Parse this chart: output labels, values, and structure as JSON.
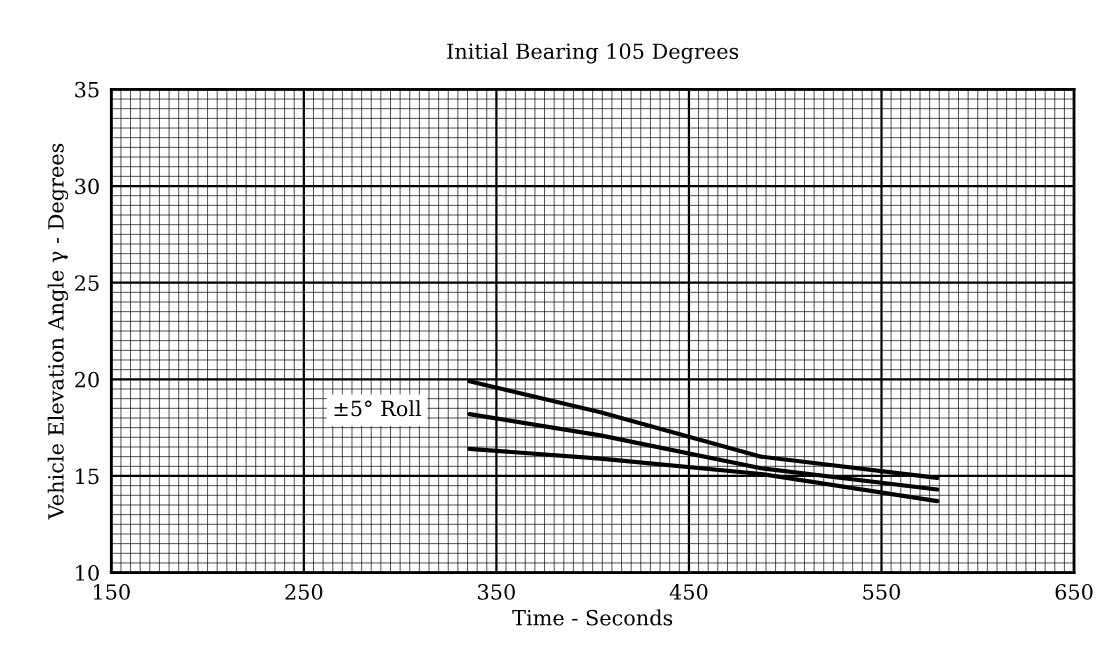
{
  "chart_data": {
    "type": "line",
    "title": "Initial Bearing 105 Degrees",
    "xlabel": "Time - Seconds",
    "ylabel": "Vehicle Elevation Angle γ - Degrees",
    "x": [
      336,
      404,
      487.5,
      579
    ],
    "series": [
      {
        "color": "#000000",
        "values": [
          19.9,
          18.3,
          16.0,
          14.9
        ]
      },
      {
        "color": "#000000",
        "values": [
          18.2,
          17.1,
          15.4,
          14.3
        ]
      },
      {
        "color": "#000000",
        "values": [
          16.4,
          15.9,
          15.1,
          13.7
        ]
      }
    ],
    "xlim": [
      150,
      650
    ],
    "xticks": [
      150,
      250,
      350,
      450,
      550,
      650
    ],
    "ylim": [
      10,
      35
    ],
    "yticks": [
      10,
      15,
      20,
      25,
      30,
      35
    ],
    "grid": true,
    "marker": "none",
    "line_style": "solid",
    "annotations": [
      "±5° Roll"
    ]
  }
}
